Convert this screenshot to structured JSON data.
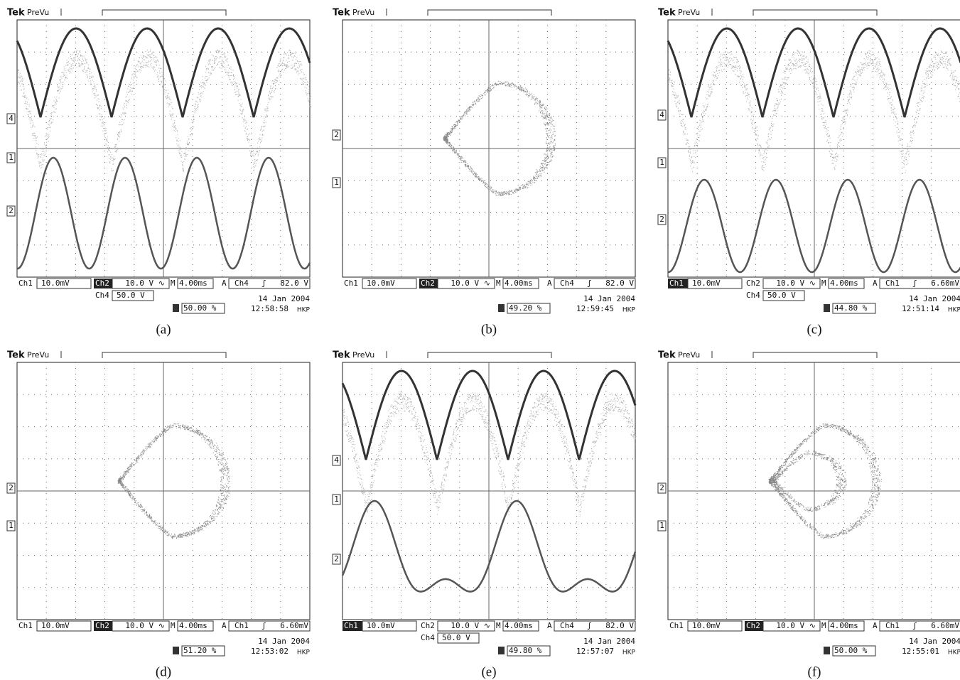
{
  "panels": [
    {
      "caption": "(a)",
      "brand": "Tek",
      "mode": "PreVu",
      "markers": [
        "4",
        "1",
        "2"
      ],
      "ch1": "Ch1",
      "ch1_scale": "10.0mV",
      "ch2": "Ch2",
      "ch2_scale": "10.0 V ∿",
      "m": "M",
      "timebase": "4.00ms",
      "a": "A",
      "trig_src": "Ch4",
      "trig_slope": "ʃ",
      "trig_level": "82.0 V",
      "ch4": "Ch4",
      "ch4_scale": "50.0 V",
      "trig_pos": "50.00 %",
      "date": "14 Jan  2004",
      "time": "12:58:58",
      "tz": "HKP"
    },
    {
      "caption": "(b)",
      "brand": "Tek",
      "mode": "PreVu",
      "markers": [
        "2",
        "1"
      ],
      "ch1": "Ch1",
      "ch1_scale": "10.0mV",
      "ch2": "Ch2",
      "ch2_scale": "10.0 V ∿",
      "m": "M",
      "timebase": "4.00ms",
      "a": "A",
      "trig_src": "Ch4",
      "trig_slope": "ʃ",
      "trig_level": "82.0 V",
      "trig_pos": "49.20 %",
      "date": "14 Jan  2004",
      "time": "12:59:45",
      "tz": "HKP"
    },
    {
      "caption": "(c)",
      "brand": "Tek",
      "mode": "PreVu",
      "markers": [
        "4",
        "1",
        "2"
      ],
      "ch1": "Ch1",
      "ch1_scale": "10.0mV",
      "ch2": "Ch2",
      "ch2_scale": "10.0 V ∿",
      "m": "M",
      "timebase": "4.00ms",
      "a": "A",
      "trig_src": "Ch1",
      "trig_slope": "ʃ",
      "trig_level": "6.60mV",
      "ch4": "Ch4",
      "ch4_scale": "50.0 V",
      "trig_pos": "44.80 %",
      "date": "14 Jan  2004",
      "time": "12:51:14",
      "tz": "HKP"
    },
    {
      "caption": "(d)",
      "brand": "Tek",
      "mode": "PreVu",
      "markers": [
        "2",
        "1"
      ],
      "ch1": "Ch1",
      "ch1_scale": "10.0mV",
      "ch2": "Ch2",
      "ch2_scale": "10.0 V ∿",
      "m": "M",
      "timebase": "4.00ms",
      "a": "A",
      "trig_src": "Ch1",
      "trig_slope": "ʃ",
      "trig_level": "6.60mV",
      "trig_pos": "51.20 %",
      "date": "14 Jan  2004",
      "time": "12:53:02",
      "tz": "HKP"
    },
    {
      "caption": "(e)",
      "brand": "Tek",
      "mode": "PreVu",
      "markers": [
        "4",
        "1",
        "2"
      ],
      "ch1": "Ch1",
      "ch1_scale": "10.0mV",
      "ch2": "Ch2",
      "ch2_scale": "10.0 V ∿",
      "m": "M",
      "timebase": "4.00ms",
      "a": "A",
      "trig_src": "Ch4",
      "trig_slope": "ʃ",
      "trig_level": "82.0 V",
      "ch4": "Ch4",
      "ch4_scale": "50.0 V",
      "trig_pos": "49.80 %",
      "date": "14 Jan  2004",
      "time": "12:57:07",
      "tz": "HKP"
    },
    {
      "caption": "(f)",
      "brand": "Tek",
      "mode": "PreVu",
      "markers": [
        "2",
        "1"
      ],
      "ch1": "Ch1",
      "ch1_scale": "10.0mV",
      "ch2": "Ch2",
      "ch2_scale": "10.0 V ∿",
      "m": "M",
      "timebase": "4.00ms",
      "a": "A",
      "trig_src": "Ch1",
      "trig_slope": "ʃ",
      "trig_level": "6.60mV",
      "trig_pos": "50.00 %",
      "date": "14 Jan  2004",
      "time": "12:55:01",
      "tz": "HKP"
    }
  ]
}
